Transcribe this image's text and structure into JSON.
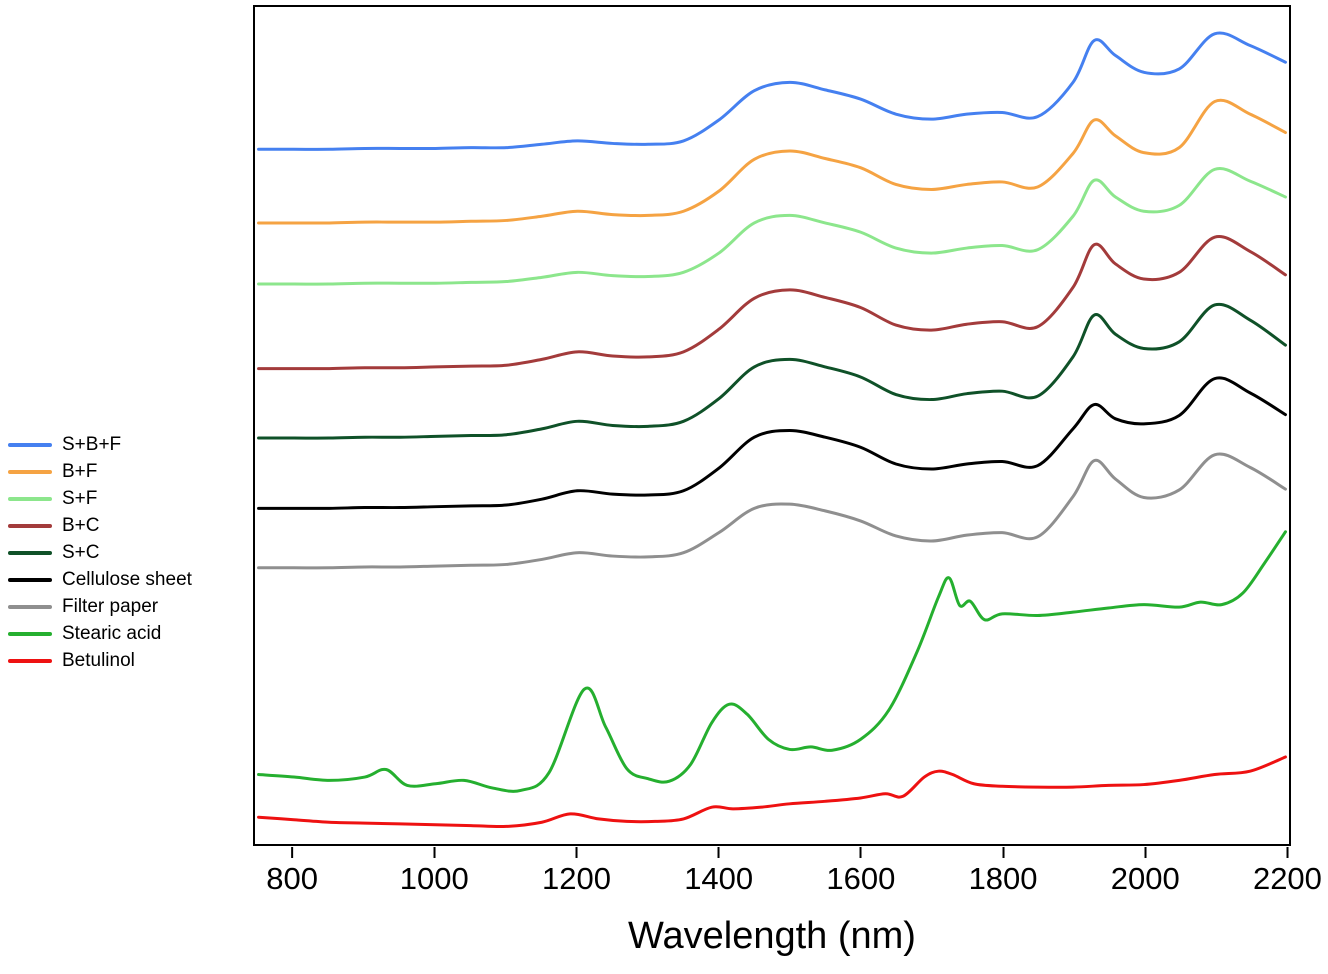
{
  "chart_data": {
    "type": "line",
    "title": "",
    "xlabel": "Wavelength (nm)",
    "ylabel": "",
    "xlim": [
      745,
      2205
    ],
    "ylim": [
      0,
      100
    ],
    "x_ticks": [
      800,
      1000,
      1200,
      1400,
      1600,
      1800,
      2000,
      2200
    ],
    "grid": false,
    "legend_position": "left-outside",
    "y_units": "arbitrary offset units (stacked spectra, 0-100 of plot height)",
    "series": [
      {
        "name": "S+B+F",
        "color": "#4580F0",
        "points": [
          [
            750,
            83
          ],
          [
            800,
            83
          ],
          [
            850,
            83
          ],
          [
            900,
            83.1
          ],
          [
            950,
            83.1
          ],
          [
            1000,
            83.1
          ],
          [
            1050,
            83.2
          ],
          [
            1100,
            83.2
          ],
          [
            1150,
            83.6
          ],
          [
            1200,
            84
          ],
          [
            1250,
            83.7
          ],
          [
            1300,
            83.6
          ],
          [
            1350,
            84
          ],
          [
            1400,
            86.5
          ],
          [
            1450,
            90
          ],
          [
            1500,
            91
          ],
          [
            1550,
            90.1
          ],
          [
            1600,
            89
          ],
          [
            1650,
            87.2
          ],
          [
            1700,
            86.6
          ],
          [
            1750,
            87.2
          ],
          [
            1800,
            87.4
          ],
          [
            1850,
            86.9
          ],
          [
            1900,
            91
          ],
          [
            1930,
            96
          ],
          [
            1960,
            94.2
          ],
          [
            2000,
            92.2
          ],
          [
            2050,
            92.6
          ],
          [
            2100,
            96.8
          ],
          [
            2150,
            95.4
          ],
          [
            2200,
            93.4
          ]
        ]
      },
      {
        "name": "B+F",
        "color": "#F5A343",
        "points": [
          [
            750,
            74.2
          ],
          [
            800,
            74.2
          ],
          [
            850,
            74.2
          ],
          [
            900,
            74.3
          ],
          [
            950,
            74.3
          ],
          [
            1000,
            74.3
          ],
          [
            1050,
            74.4
          ],
          [
            1100,
            74.5
          ],
          [
            1150,
            75
          ],
          [
            1200,
            75.6
          ],
          [
            1250,
            75.2
          ],
          [
            1300,
            75.1
          ],
          [
            1350,
            75.6
          ],
          [
            1400,
            78
          ],
          [
            1450,
            81.8
          ],
          [
            1500,
            82.8
          ],
          [
            1550,
            81.9
          ],
          [
            1600,
            80.8
          ],
          [
            1650,
            78.8
          ],
          [
            1700,
            78.2
          ],
          [
            1750,
            78.8
          ],
          [
            1800,
            79.1
          ],
          [
            1850,
            78.5
          ],
          [
            1900,
            82.5
          ],
          [
            1930,
            86.5
          ],
          [
            1960,
            84.6
          ],
          [
            2000,
            82.6
          ],
          [
            2050,
            83.2
          ],
          [
            2100,
            88.7
          ],
          [
            2150,
            87.2
          ],
          [
            2200,
            85
          ]
        ]
      },
      {
        "name": "S+F",
        "color": "#8CE68C",
        "points": [
          [
            750,
            66.9
          ],
          [
            800,
            66.9
          ],
          [
            850,
            66.9
          ],
          [
            900,
            67
          ],
          [
            950,
            67
          ],
          [
            1000,
            67
          ],
          [
            1050,
            67.1
          ],
          [
            1100,
            67.2
          ],
          [
            1150,
            67.7
          ],
          [
            1200,
            68.3
          ],
          [
            1250,
            67.9
          ],
          [
            1300,
            67.8
          ],
          [
            1350,
            68.3
          ],
          [
            1400,
            70.6
          ],
          [
            1450,
            74.2
          ],
          [
            1500,
            75.1
          ],
          [
            1550,
            74.2
          ],
          [
            1600,
            73.1
          ],
          [
            1650,
            71.2
          ],
          [
            1700,
            70.6
          ],
          [
            1750,
            71.2
          ],
          [
            1800,
            71.5
          ],
          [
            1850,
            71
          ],
          [
            1900,
            75
          ],
          [
            1930,
            79.3
          ],
          [
            1960,
            77.3
          ],
          [
            2000,
            75.6
          ],
          [
            2050,
            76.3
          ],
          [
            2100,
            80.6
          ],
          [
            2150,
            79.2
          ],
          [
            2200,
            77.3
          ]
        ]
      },
      {
        "name": "B+C",
        "color": "#A33B3B",
        "points": [
          [
            750,
            56.8
          ],
          [
            800,
            56.8
          ],
          [
            850,
            56.8
          ],
          [
            900,
            56.9
          ],
          [
            950,
            56.9
          ],
          [
            1000,
            57
          ],
          [
            1050,
            57.1
          ],
          [
            1100,
            57.2
          ],
          [
            1150,
            57.9
          ],
          [
            1200,
            58.8
          ],
          [
            1250,
            58.3
          ],
          [
            1300,
            58.2
          ],
          [
            1350,
            58.8
          ],
          [
            1400,
            61.5
          ],
          [
            1450,
            65.2
          ],
          [
            1500,
            66.2
          ],
          [
            1550,
            65.3
          ],
          [
            1600,
            64.1
          ],
          [
            1650,
            62
          ],
          [
            1700,
            61.4
          ],
          [
            1750,
            62.1
          ],
          [
            1800,
            62.4
          ],
          [
            1850,
            61.8
          ],
          [
            1900,
            66.5
          ],
          [
            1930,
            71.6
          ],
          [
            1960,
            69.3
          ],
          [
            2000,
            67.5
          ],
          [
            2050,
            68.3
          ],
          [
            2100,
            72.5
          ],
          [
            2150,
            70.8
          ],
          [
            2200,
            68
          ]
        ]
      },
      {
        "name": "S+C",
        "color": "#0F5128",
        "points": [
          [
            750,
            48.5
          ],
          [
            800,
            48.5
          ],
          [
            850,
            48.5
          ],
          [
            900,
            48.6
          ],
          [
            950,
            48.6
          ],
          [
            1000,
            48.7
          ],
          [
            1050,
            48.8
          ],
          [
            1100,
            48.9
          ],
          [
            1150,
            49.6
          ],
          [
            1200,
            50.5
          ],
          [
            1250,
            50
          ],
          [
            1300,
            49.9
          ],
          [
            1350,
            50.5
          ],
          [
            1400,
            53.2
          ],
          [
            1450,
            57
          ],
          [
            1500,
            57.9
          ],
          [
            1550,
            57
          ],
          [
            1600,
            55.8
          ],
          [
            1650,
            53.7
          ],
          [
            1700,
            53.1
          ],
          [
            1750,
            53.8
          ],
          [
            1800,
            54.1
          ],
          [
            1850,
            53.5
          ],
          [
            1900,
            58.2
          ],
          [
            1930,
            63.2
          ],
          [
            1960,
            60.9
          ],
          [
            2000,
            59.2
          ],
          [
            2050,
            60
          ],
          [
            2100,
            64.4
          ],
          [
            2150,
            62.6
          ],
          [
            2200,
            59.6
          ]
        ]
      },
      {
        "name": "Cellulose sheet",
        "color": "#000000",
        "points": [
          [
            750,
            40.1
          ],
          [
            800,
            40.1
          ],
          [
            850,
            40.1
          ],
          [
            900,
            40.2
          ],
          [
            950,
            40.2
          ],
          [
            1000,
            40.3
          ],
          [
            1050,
            40.4
          ],
          [
            1100,
            40.5
          ],
          [
            1150,
            41.2
          ],
          [
            1200,
            42.2
          ],
          [
            1250,
            41.8
          ],
          [
            1300,
            41.7
          ],
          [
            1350,
            42.2
          ],
          [
            1400,
            44.9
          ],
          [
            1450,
            48.6
          ],
          [
            1500,
            49.4
          ],
          [
            1550,
            48.6
          ],
          [
            1600,
            47.4
          ],
          [
            1650,
            45.4
          ],
          [
            1700,
            44.8
          ],
          [
            1750,
            45.4
          ],
          [
            1800,
            45.7
          ],
          [
            1850,
            45.2
          ],
          [
            1900,
            49.6
          ],
          [
            1930,
            52.5
          ],
          [
            1960,
            50.8
          ],
          [
            2000,
            50.2
          ],
          [
            2050,
            51.2
          ],
          [
            2100,
            55.6
          ],
          [
            2150,
            53.9
          ],
          [
            2200,
            51.3
          ]
        ]
      },
      {
        "name": "Filter paper",
        "color": "#8F8F8F",
        "points": [
          [
            750,
            33
          ],
          [
            800,
            33
          ],
          [
            850,
            33
          ],
          [
            900,
            33.1
          ],
          [
            950,
            33.1
          ],
          [
            1000,
            33.2
          ],
          [
            1050,
            33.3
          ],
          [
            1100,
            33.4
          ],
          [
            1150,
            34
          ],
          [
            1200,
            34.8
          ],
          [
            1250,
            34.4
          ],
          [
            1300,
            34.3
          ],
          [
            1350,
            34.8
          ],
          [
            1400,
            37.2
          ],
          [
            1450,
            40.1
          ],
          [
            1500,
            40.6
          ],
          [
            1550,
            39.8
          ],
          [
            1600,
            38.6
          ],
          [
            1650,
            36.8
          ],
          [
            1700,
            36.2
          ],
          [
            1750,
            36.9
          ],
          [
            1800,
            37.2
          ],
          [
            1850,
            36.7
          ],
          [
            1900,
            41.5
          ],
          [
            1930,
            45.8
          ],
          [
            1960,
            43.6
          ],
          [
            2000,
            41.4
          ],
          [
            2050,
            42.3
          ],
          [
            2100,
            46.5
          ],
          [
            2150,
            45
          ],
          [
            2200,
            42.4
          ]
        ]
      },
      {
        "name": "Stearic acid",
        "color": "#25AF2F",
        "points": [
          [
            750,
            8.3
          ],
          [
            800,
            8
          ],
          [
            850,
            7.6
          ],
          [
            900,
            8
          ],
          [
            930,
            8.9
          ],
          [
            960,
            7
          ],
          [
            1000,
            7.2
          ],
          [
            1040,
            7.6
          ],
          [
            1080,
            6.7
          ],
          [
            1120,
            6.4
          ],
          [
            1160,
            8.5
          ],
          [
            1210,
            18.5
          ],
          [
            1240,
            14
          ],
          [
            1270,
            9
          ],
          [
            1300,
            7.8
          ],
          [
            1330,
            7.5
          ],
          [
            1360,
            9.5
          ],
          [
            1390,
            14.5
          ],
          [
            1415,
            16.7
          ],
          [
            1440,
            15.5
          ],
          [
            1470,
            12.5
          ],
          [
            1500,
            11.3
          ],
          [
            1530,
            11.6
          ],
          [
            1560,
            11.2
          ],
          [
            1600,
            12.5
          ],
          [
            1640,
            16
          ],
          [
            1680,
            23
          ],
          [
            1710,
            29.5
          ],
          [
            1725,
            31.8
          ],
          [
            1740,
            28.5
          ],
          [
            1755,
            29
          ],
          [
            1775,
            26.8
          ],
          [
            1800,
            27.5
          ],
          [
            1850,
            27.3
          ],
          [
            1900,
            27.7
          ],
          [
            1950,
            28.2
          ],
          [
            2000,
            28.6
          ],
          [
            2050,
            28.3
          ],
          [
            2080,
            28.9
          ],
          [
            2110,
            28.6
          ],
          [
            2140,
            30
          ],
          [
            2170,
            33.5
          ],
          [
            2200,
            37.3
          ]
        ]
      },
      {
        "name": "Betulinol",
        "color": "#EE1111",
        "points": [
          [
            750,
            3.2
          ],
          [
            800,
            2.9
          ],
          [
            850,
            2.6
          ],
          [
            900,
            2.5
          ],
          [
            950,
            2.4
          ],
          [
            1000,
            2.3
          ],
          [
            1050,
            2.2
          ],
          [
            1100,
            2.1
          ],
          [
            1150,
            2.6
          ],
          [
            1190,
            3.6
          ],
          [
            1230,
            3
          ],
          [
            1270,
            2.7
          ],
          [
            1310,
            2.7
          ],
          [
            1350,
            3
          ],
          [
            1390,
            4.4
          ],
          [
            1420,
            4.2
          ],
          [
            1460,
            4.4
          ],
          [
            1500,
            4.8
          ],
          [
            1550,
            5.1
          ],
          [
            1600,
            5.5
          ],
          [
            1635,
            6
          ],
          [
            1660,
            5.7
          ],
          [
            1690,
            8
          ],
          [
            1710,
            8.7
          ],
          [
            1730,
            8.3
          ],
          [
            1760,
            7.2
          ],
          [
            1800,
            6.9
          ],
          [
            1850,
            6.8
          ],
          [
            1900,
            6.8
          ],
          [
            1950,
            7
          ],
          [
            2000,
            7.1
          ],
          [
            2050,
            7.6
          ],
          [
            2100,
            8.3
          ],
          [
            2150,
            8.7
          ],
          [
            2200,
            10.4
          ]
        ]
      }
    ]
  }
}
